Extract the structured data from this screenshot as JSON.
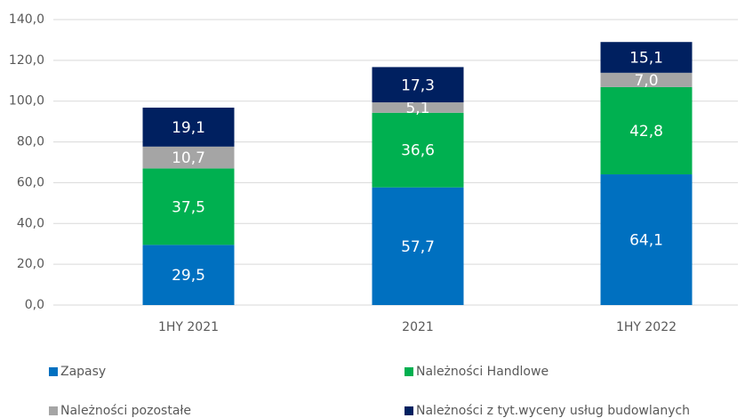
{
  "chart_data": {
    "type": "stacked_bar",
    "categories": [
      "1HY 2021",
      "2021",
      "1HY 2022"
    ],
    "series": [
      {
        "name": "Zapasy",
        "color": "#0070c0",
        "values": [
          29.5,
          57.7,
          64.1
        ],
        "value_labels": [
          "29,5",
          "57,7",
          "64,1"
        ]
      },
      {
        "name": "Należności Handlowe",
        "color": "#00b050",
        "values": [
          37.5,
          36.6,
          42.8
        ],
        "value_labels": [
          "37,5",
          "36,6",
          "42,8"
        ]
      },
      {
        "name": "Należności pozostałe",
        "color": "#a5a5a5",
        "values": [
          10.7,
          5.1,
          7.0
        ],
        "value_labels": [
          "10,7",
          "5,1",
          "7,0"
        ]
      },
      {
        "name": "Należności z tyt.wyceny usług budowlanych",
        "color": "#002060",
        "values": [
          19.1,
          17.3,
          15.1
        ],
        "value_labels": [
          "19,1",
          "17,3",
          "15,1"
        ]
      }
    ],
    "ylim": [
      0,
      140
    ],
    "yticks": [
      {
        "value": 0,
        "label": "0,0"
      },
      {
        "value": 20,
        "label": "20,0"
      },
      {
        "value": 40,
        "label": "40,0"
      },
      {
        "value": 60,
        "label": "60,0"
      },
      {
        "value": 80,
        "label": "80,0"
      },
      {
        "value": 100,
        "label": "100,0"
      },
      {
        "value": 120,
        "label": "120,0"
      },
      {
        "value": 140,
        "label": "140,0"
      }
    ],
    "grid": true,
    "legend": "bottom"
  }
}
